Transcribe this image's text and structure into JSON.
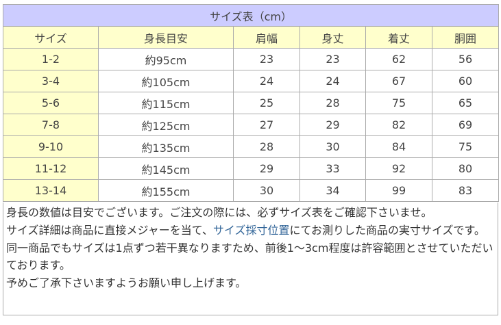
{
  "table": {
    "title": "サイズ表（cm）",
    "headers": [
      "サイズ",
      "身長目安",
      "肩幅",
      "身丈",
      "着丈",
      "胴囲"
    ],
    "rows": [
      [
        "1-2",
        "約95cm",
        "23",
        "23",
        "62",
        "56"
      ],
      [
        "3-4",
        "約105cm",
        "24",
        "24",
        "67",
        "60"
      ],
      [
        "5-6",
        "約115cm",
        "25",
        "28",
        "75",
        "65"
      ],
      [
        "7-8",
        "約125cm",
        "27",
        "29",
        "82",
        "69"
      ],
      [
        "9-10",
        "約135cm",
        "28",
        "30",
        "84",
        "75"
      ],
      [
        "11-12",
        "約145cm",
        "29",
        "33",
        "92",
        "80"
      ],
      [
        "13-14",
        "約155cm",
        "30",
        "34",
        "99",
        "83"
      ]
    ]
  },
  "notes": {
    "line1": "身長の数値は目安でございます。ご注文の際には、必ずサイズ表をご確認下さいませ。",
    "line2_before": "サイズ詳細は商品に直接メジャーを当て、",
    "line2_link": "サイズ採寸位置",
    "line2_after": "にてお測りした商品の実寸サイズです。",
    "line3": "同一商品でもサイズは1点ずつ若干異なりますため、前後1～3cm程度は許容範囲とさせていただいております。",
    "line4": "予めご了承下さいますようお願い申し上げます。"
  },
  "colors": {
    "title_bg": "#ccccff",
    "header_bg": "#ffffcc",
    "link": "#336699"
  }
}
